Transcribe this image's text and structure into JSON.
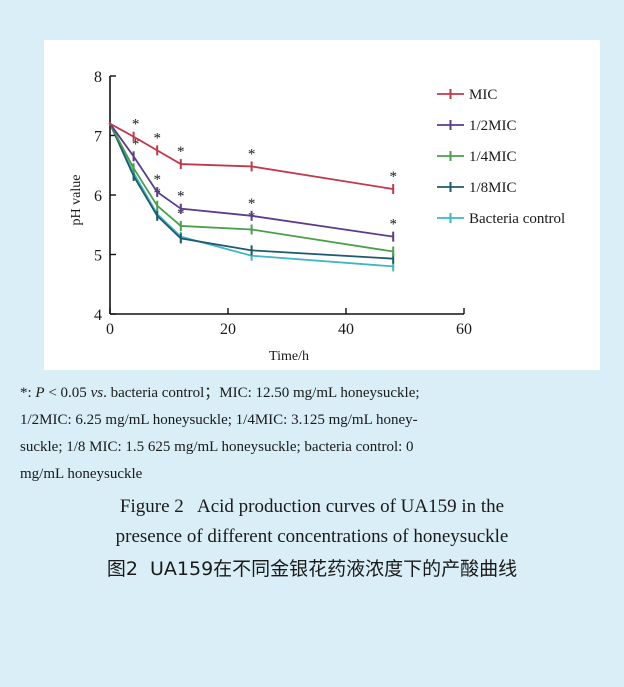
{
  "chart_data": {
    "type": "line",
    "xlabel": "Time/h",
    "ylabel": "pH value",
    "xlim": [
      0,
      60
    ],
    "ylim": [
      4,
      8
    ],
    "xticks": [
      0,
      20,
      40,
      60
    ],
    "yticks": [
      4,
      5,
      6,
      7,
      8
    ],
    "x": [
      0,
      4,
      8,
      12,
      24,
      48
    ],
    "legend_position": "top-right",
    "grid": false,
    "series": [
      {
        "name": "MIC",
        "color": "#c0394b",
        "values": [
          7.2,
          6.98,
          6.75,
          6.52,
          6.48,
          6.1
        ],
        "star": [
          false,
          true,
          true,
          true,
          true,
          true
        ]
      },
      {
        "name": "1/2MIC",
        "color": "#5b3c8c",
        "values": [
          7.2,
          6.65,
          6.05,
          5.77,
          5.65,
          5.3
        ],
        "star": [
          false,
          true,
          true,
          true,
          true,
          true
        ]
      },
      {
        "name": "1/4MIC",
        "color": "#4aa04a",
        "values": [
          7.2,
          6.45,
          5.82,
          5.48,
          5.42,
          5.05
        ],
        "star": [
          false,
          false,
          true,
          true,
          true,
          false
        ]
      },
      {
        "name": "1/8MIC",
        "color": "#1f5a6e",
        "values": [
          7.2,
          6.32,
          5.65,
          5.27,
          5.07,
          4.93
        ],
        "star": [
          false,
          false,
          false,
          false,
          false,
          false
        ]
      },
      {
        "name": "Bacteria control",
        "color": "#3fb6c4",
        "values": [
          7.2,
          6.37,
          5.68,
          5.3,
          4.98,
          4.8
        ],
        "star": [
          false,
          false,
          false,
          false,
          false,
          false
        ]
      }
    ]
  },
  "note": {
    "line1_star": "*: ",
    "line1_p": "P",
    "line1_mid": " < 0.05 ",
    "line1_vs": "vs",
    "line1_rest": ". bacteria control；MIC: 12.50 mg/mL honeysuckle;",
    "line2": "1/2MIC: 6.25 mg/mL honeysuckle; 1/4MIC: 3.125 mg/mL honey-",
    "line3": "suckle; 1/8 MIC: 1.5 625 mg/mL honeysuckle; bacteria control: 0",
    "line4": "mg/mL honeysuckle"
  },
  "figure": {
    "en_line1": "Figure 2   Acid production curves of UA159 in the",
    "en_line2": "presence of different concentrations of honeysuckle",
    "cn": "图2  UA159在不同金银花药液浓度下的产酸曲线"
  }
}
